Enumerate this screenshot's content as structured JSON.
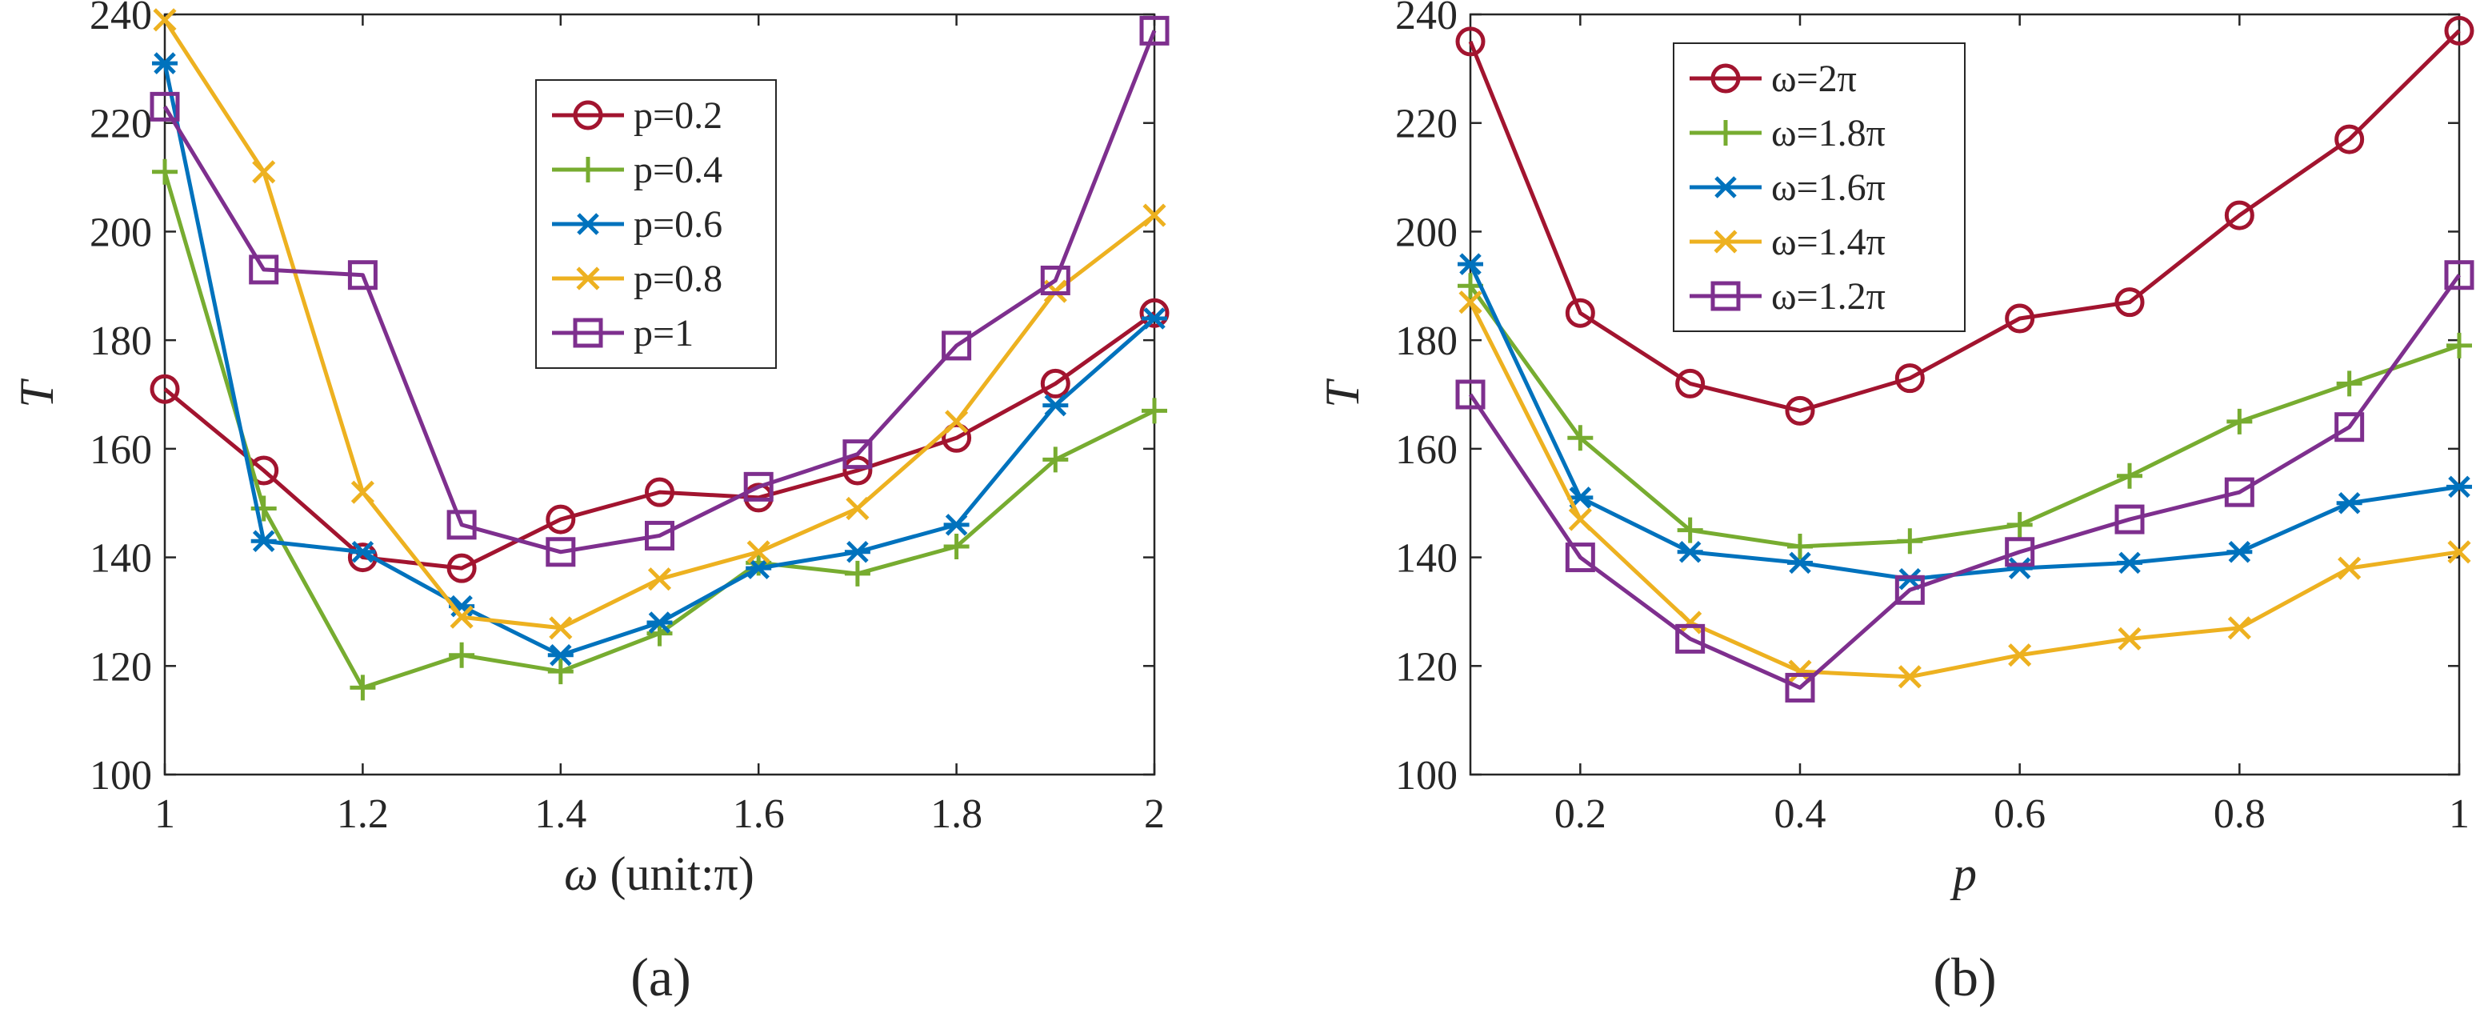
{
  "figure": {
    "panel_labels": [
      "(a)",
      "(b)"
    ]
  },
  "chart_data": [
    {
      "type": "line",
      "panel": "(a)",
      "xlabel_symbol": "ω",
      "xlabel_suffix": " (unit:π)",
      "ylabel": "T",
      "x": [
        1,
        1.1,
        1.2,
        1.3,
        1.4,
        1.5,
        1.6,
        1.7,
        1.8,
        1.9,
        2
      ],
      "xlim": [
        1,
        2
      ],
      "ylim": [
        100,
        240
      ],
      "xticks": [
        1,
        1.2,
        1.4,
        1.6,
        1.8,
        2
      ],
      "xtick_labels": [
        "1",
        "1.2",
        "1.4",
        "1.6",
        "1.8",
        "2"
      ],
      "yticks": [
        100,
        120,
        140,
        160,
        180,
        200,
        220,
        240
      ],
      "ytick_labels": [
        "100",
        "120",
        "140",
        "160",
        "180",
        "200",
        "220",
        "240"
      ],
      "grid": false,
      "legend_position": "upper-center",
      "series": [
        {
          "name": "p=0.2",
          "color": "#A2142F",
          "marker": "circle",
          "values": [
            171,
            156,
            140,
            138,
            147,
            152,
            151,
            156,
            162,
            172,
            185
          ]
        },
        {
          "name": "p=0.4",
          "color": "#77AC30",
          "marker": "plus",
          "values": [
            211,
            149,
            116,
            122,
            119,
            126,
            139,
            137,
            142,
            158,
            167
          ]
        },
        {
          "name": "p=0.6",
          "color": "#0072BD",
          "marker": "asterisk",
          "values": [
            231,
            143,
            141,
            131,
            122,
            128,
            138,
            141,
            146,
            168,
            184
          ]
        },
        {
          "name": "p=0.8",
          "color": "#EDB120",
          "marker": "x",
          "values": [
            239,
            211,
            152,
            129,
            127,
            136,
            141,
            149,
            165,
            189,
            203
          ]
        },
        {
          "name": "p=1",
          "color": "#7E2F8E",
          "marker": "square",
          "values": [
            223,
            193,
            192,
            146,
            141,
            144,
            153,
            159,
            179,
            191,
            237
          ]
        }
      ]
    },
    {
      "type": "line",
      "panel": "(b)",
      "xlabel": "p",
      "ylabel": "T",
      "x": [
        0.1,
        0.2,
        0.3,
        0.4,
        0.5,
        0.6,
        0.7,
        0.8,
        0.9,
        1.0
      ],
      "xlim": [
        0.1,
        1
      ],
      "ylim": [
        100,
        240
      ],
      "xticks": [
        0.2,
        0.4,
        0.6,
        0.8,
        1
      ],
      "xtick_labels": [
        "0.2",
        "0.4",
        "0.6",
        "0.8",
        "1"
      ],
      "yticks": [
        100,
        120,
        140,
        160,
        180,
        200,
        220,
        240
      ],
      "ytick_labels": [
        "100",
        "120",
        "140",
        "160",
        "180",
        "200",
        "220",
        "240"
      ],
      "grid": false,
      "legend_position": "upper-left",
      "series": [
        {
          "name": "ω=2π",
          "color": "#A2142F",
          "marker": "circle",
          "values": [
            235,
            185,
            172,
            167,
            173,
            184,
            187,
            203,
            217,
            237
          ]
        },
        {
          "name": "ω=1.8π",
          "color": "#77AC30",
          "marker": "plus",
          "values": [
            190,
            162,
            145,
            142,
            143,
            146,
            155,
            165,
            172,
            179
          ]
        },
        {
          "name": "ω=1.6π",
          "color": "#0072BD",
          "marker": "asterisk",
          "values": [
            194,
            151,
            141,
            139,
            136,
            138,
            139,
            141,
            150,
            153
          ]
        },
        {
          "name": "ω=1.4π",
          "color": "#EDB120",
          "marker": "x",
          "values": [
            187,
            147,
            128,
            119,
            118,
            122,
            125,
            127,
            138,
            141
          ]
        },
        {
          "name": "ω=1.2π",
          "color": "#7E2F8E",
          "marker": "square",
          "values": [
            170,
            140,
            125,
            116,
            134,
            141,
            147,
            152,
            164,
            192
          ]
        }
      ]
    }
  ]
}
